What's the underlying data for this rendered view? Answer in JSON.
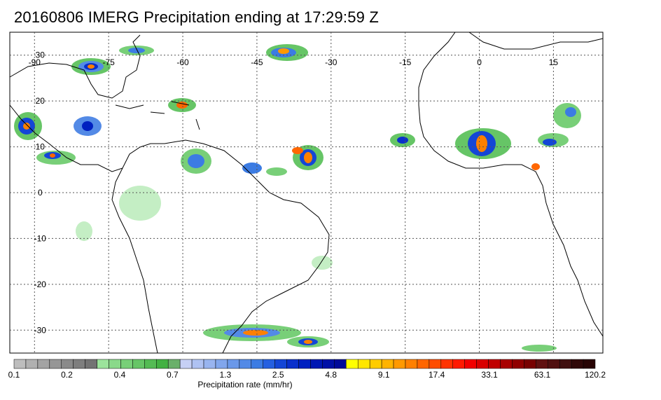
{
  "title": "20160806 IMERG Precipitation ending at 17:29:59 Z",
  "map": {
    "lon_labels": [
      "-90",
      "-75",
      "-60",
      "-45",
      "-30",
      "-15",
      "0",
      "15"
    ],
    "lon_values": [
      -90,
      -75,
      -60,
      -45,
      -30,
      -15,
      0,
      15
    ],
    "lat_labels": [
      "30",
      "20",
      "10",
      "0",
      "-10",
      "-20",
      "-30"
    ],
    "lat_values": [
      30,
      20,
      10,
      0,
      -10,
      -20,
      -30
    ],
    "lon_range": [
      -95,
      25
    ],
    "lat_range": [
      35,
      -35
    ],
    "gridlines": true,
    "colors": {
      "coastline": "#000000",
      "grid": "#555555"
    }
  },
  "colorbar": {
    "caption": "Precipitation rate (mm/hr)",
    "tick_labels": [
      "0.1",
      "0.2",
      "0.4",
      "0.7",
      "1.3",
      "2.5",
      "4.8",
      "9.1",
      "17.4",
      "33.1",
      "63.1",
      "120.2"
    ],
    "colors": [
      "#bdbdbd",
      "#b0b0b0",
      "#a3a3a3",
      "#969696",
      "#8a8a8a",
      "#7e7e7e",
      "#737373",
      "#9ce39c",
      "#8ad98a",
      "#78cf78",
      "#66c566",
      "#54bb54",
      "#42b142",
      "#6ab06a",
      "#c6d0f5",
      "#afc2f2",
      "#98b4ef",
      "#81a6ec",
      "#6a98e9",
      "#538ae6",
      "#3c7ce3",
      "#2560e0",
      "#1446d6",
      "#0a30cc",
      "#0020c0",
      "#0018b3",
      "#0010a6",
      "#000a99",
      "#ffff00",
      "#ffe600",
      "#ffcc00",
      "#ffb300",
      "#ff9900",
      "#ff8000",
      "#ff6600",
      "#ff4c00",
      "#ff3300",
      "#ff1a00",
      "#f20000",
      "#d90000",
      "#c00000",
      "#a80000",
      "#900000",
      "#780000",
      "#601010",
      "#501010",
      "#401010",
      "#300808",
      "#280404"
    ]
  }
}
